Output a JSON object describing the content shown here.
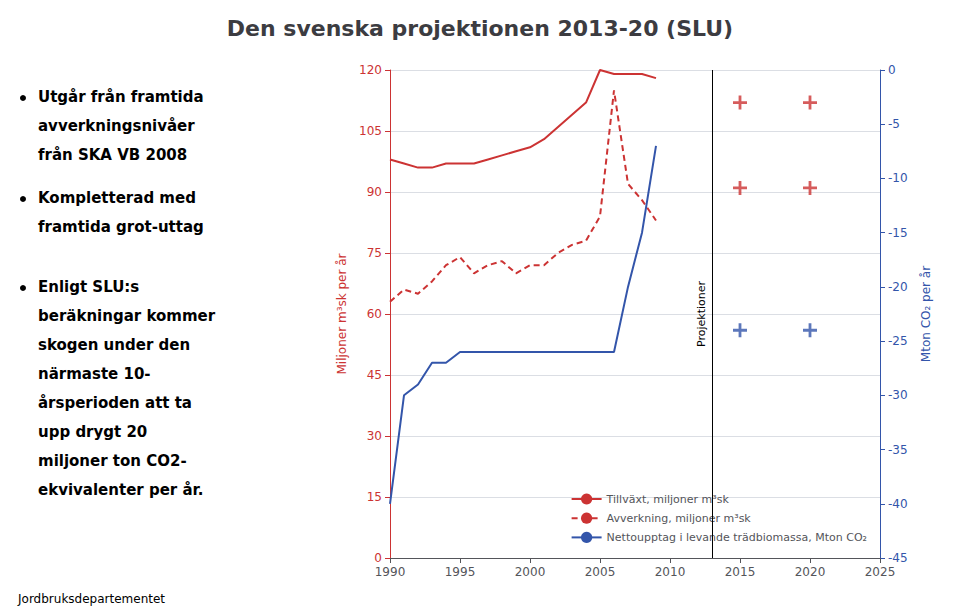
{
  "chart_data": {
    "type": "line",
    "title": "Den svenska projektionen 2013-20 (SLU)",
    "ylabel": "Miljoner m³sk per år",
    "y2label": "Mton CO₂ per år",
    "xlim": [
      1990,
      2025
    ],
    "xticks": [
      1990,
      1995,
      2000,
      2005,
      2010,
      2015,
      2020,
      2025
    ],
    "ylim": [
      0,
      120
    ],
    "yticks": [
      0,
      15,
      30,
      45,
      60,
      75,
      90,
      105,
      120
    ],
    "y2lim": [
      -45,
      0
    ],
    "y2ticks": [
      -45,
      -40,
      -35,
      -30,
      -25,
      -20,
      -15,
      -10,
      -5,
      0
    ],
    "grid": true,
    "legend": "lower right",
    "series": [
      {
        "name": "Tillväxt, miljoner m³sk",
        "color": "#cc3333",
        "line_style": "solid",
        "x": [
          1990,
          1991,
          1992,
          1993,
          1994,
          1995,
          1996,
          1997,
          1998,
          1999,
          2000,
          2001,
          2002,
          2003,
          2004,
          2005,
          2006,
          2007,
          2008,
          2009
        ],
        "values": [
          98,
          97,
          96,
          96,
          97,
          97,
          97,
          98,
          99,
          100,
          101,
          103,
          106,
          109,
          112,
          120,
          119,
          119,
          119,
          118
        ]
      },
      {
        "name": "Avverkning, miljoner m³sk",
        "color": "#cc3333",
        "line_style": "dashed",
        "x": [
          1990,
          1991,
          1992,
          1993,
          1994,
          1995,
          1996,
          1997,
          1998,
          1999,
          2000,
          2001,
          2002,
          2003,
          2004,
          2005,
          2006,
          2007,
          2008,
          2009
        ],
        "values": [
          63,
          66,
          65,
          68,
          72,
          74,
          70,
          72,
          73,
          70,
          72,
          72,
          75,
          77,
          78,
          84,
          115,
          92,
          88,
          83
        ]
      },
      {
        "name": "Nettoupptag i levande trädbiomassa, Mton CO₂",
        "color": "#3355aa",
        "line_style": "solid",
        "axis": "y2",
        "x": [
          1990,
          1991,
          1992,
          1993,
          1994,
          1995,
          1996,
          1997,
          1998,
          1999,
          2000,
          2001,
          2002,
          2003,
          2004,
          2005,
          2006,
          2007,
          2008,
          2009
        ],
        "values": [
          -40,
          -30,
          -29,
          -27,
          -27,
          -26,
          -26,
          -26,
          -26,
          -26,
          -26,
          -26,
          -26,
          -26,
          -26,
          -26,
          -26,
          -20,
          -15,
          -7
        ]
      },
      {
        "type": "scatter",
        "marker": "plus",
        "color": "#cc3333",
        "x": [
          2015,
          2015,
          2020,
          2020
        ],
        "values": [
          91,
          112,
          91,
          112
        ]
      },
      {
        "type": "scatter",
        "marker": "plus",
        "color": "#3355aa",
        "axis": "y2",
        "x": [
          2015,
          2020
        ],
        "values": [
          -24,
          -24
        ]
      }
    ],
    "vlines": [
      {
        "x": 2013,
        "label": "Projektioner",
        "color": "#000000"
      }
    ],
    "bullet_points": [
      [
        "Utgår från framtida",
        "avverkningsnivåer",
        "från SKA VB 2008"
      ],
      [
        "Kompletterad med",
        "framtida grot-uttag"
      ],
      [
        "Enligt SLU:s",
        "beräkningar kommer",
        "skogen under den",
        "närmaste 10-",
        "årsperioden att ta",
        "upp drygt 20",
        "miljoner ton CO2-",
        "ekvivalenter per år."
      ]
    ],
    "footer": "Jordbruksdepartementet"
  }
}
